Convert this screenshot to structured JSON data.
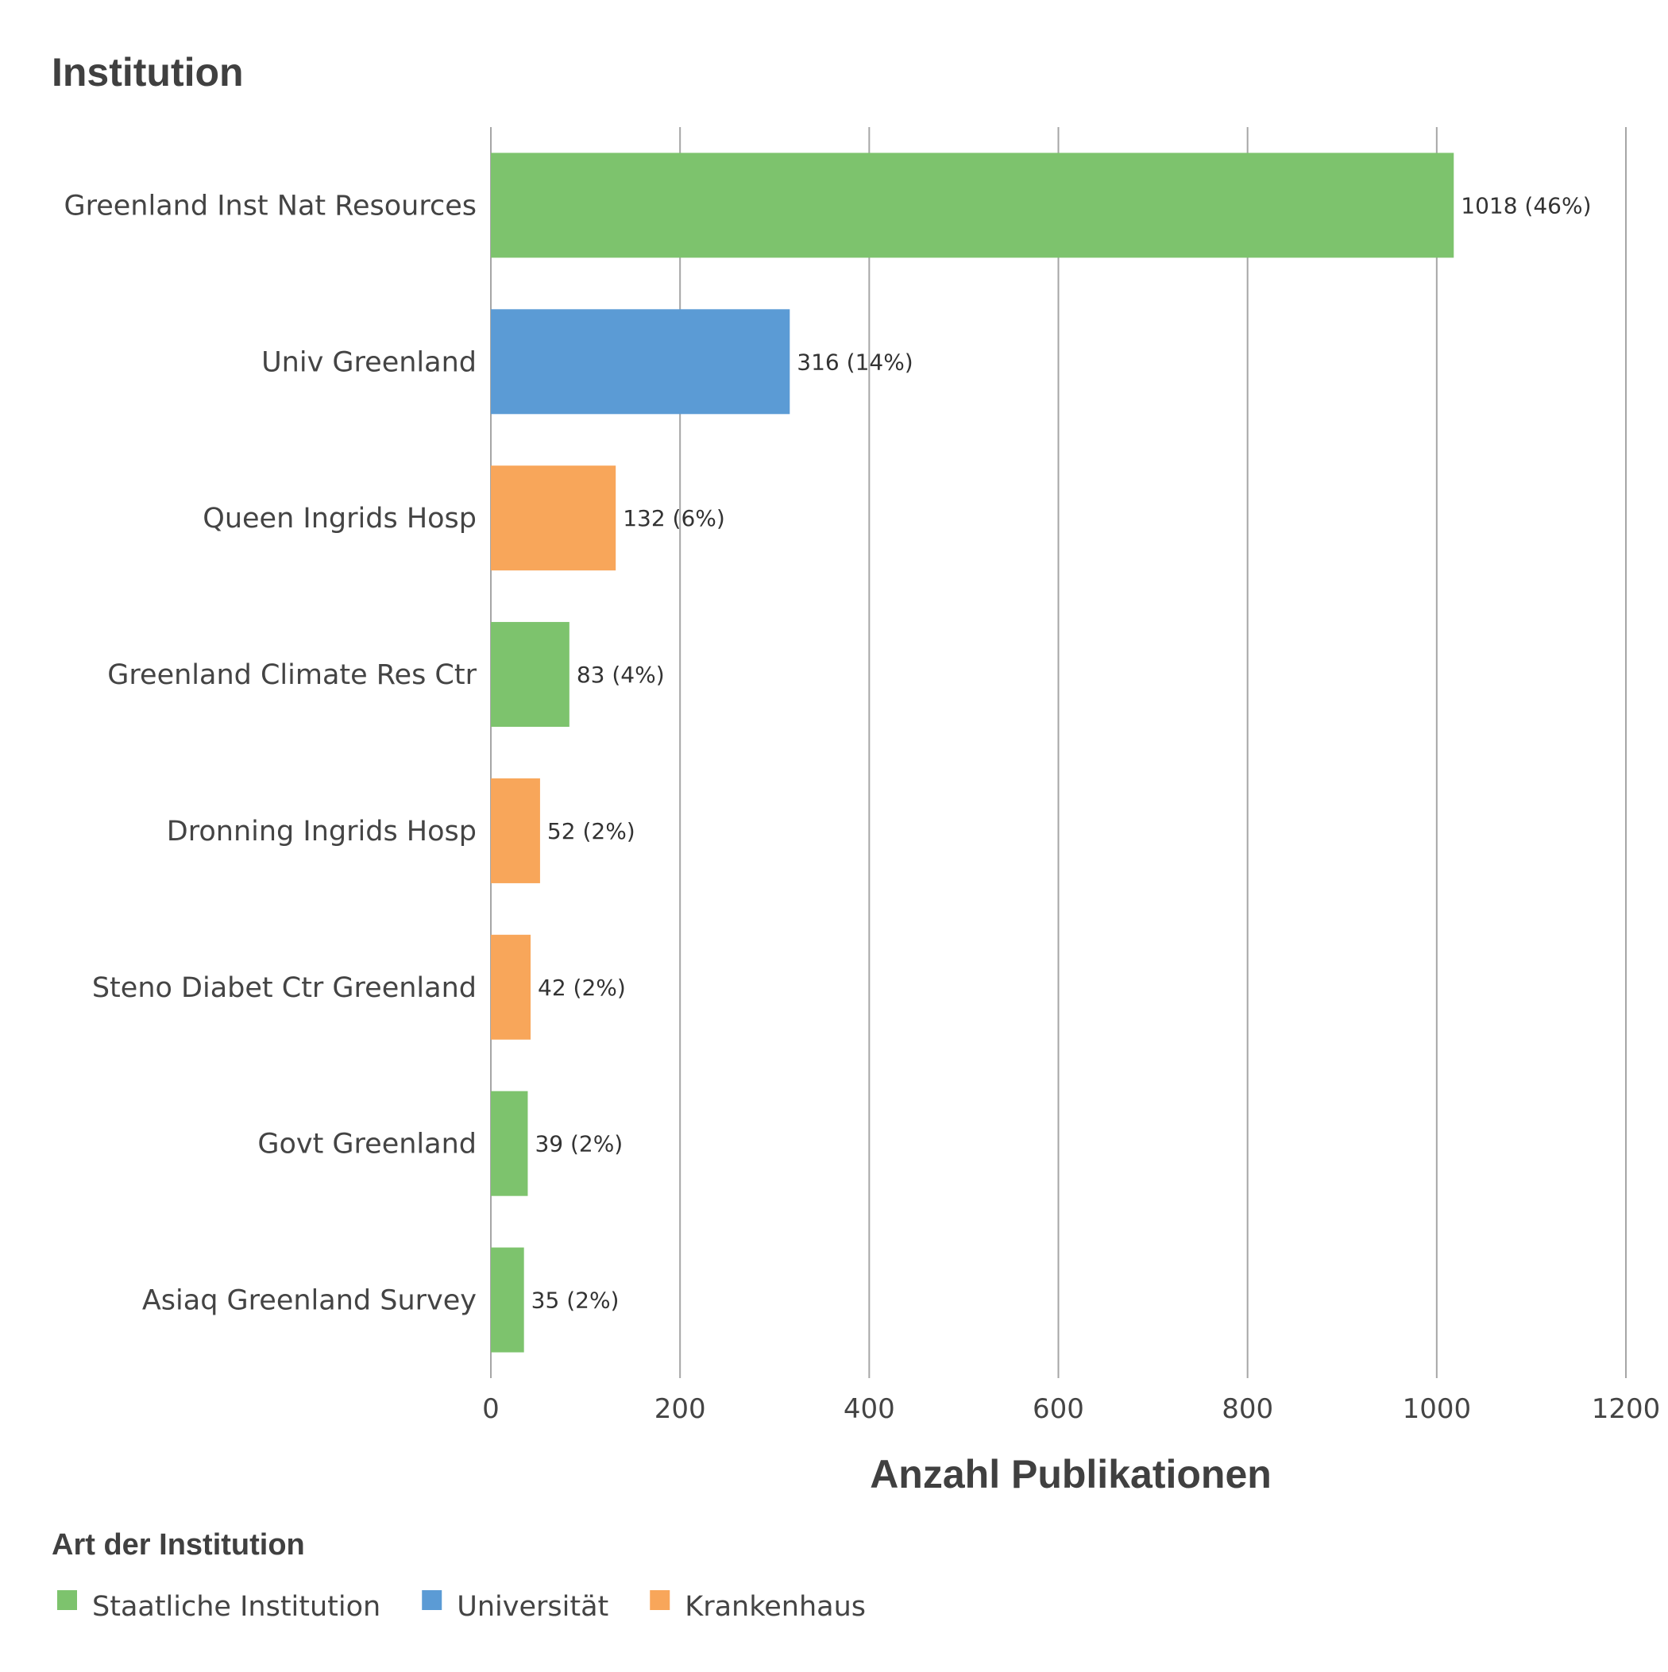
{
  "chart_data": {
    "type": "bar",
    "orientation": "horizontal",
    "title": "Institution",
    "xlabel": "Anzahl Publikationen",
    "ylabel": "",
    "xlim": [
      0,
      1200
    ],
    "x_ticks": [
      "0",
      "200",
      "400",
      "600",
      "800",
      "1000",
      "1200"
    ],
    "grid": "vertical",
    "categories": [
      "Greenland Inst Nat Resources",
      "Univ Greenland",
      "Queen Ingrids Hosp",
      "Greenland Climate Res Ctr",
      "Dronning Ingrids Hosp",
      "Steno Diabet Ctr Greenland",
      "Govt Greenland",
      "Asiaq Greenland Survey"
    ],
    "values": [
      1018,
      316,
      132,
      83,
      52,
      42,
      39,
      35
    ],
    "data_labels": [
      "1018 (46%)",
      "316 (14%)",
      "132 (6%)",
      "83 (4%)",
      "52 (2%)",
      "42 (2%)",
      "39 (2%)",
      "35 (2%)"
    ],
    "groups": [
      0,
      1,
      2,
      0,
      2,
      2,
      0,
      0
    ],
    "legend": {
      "title": "Art der Institution",
      "placement": "bottom-left",
      "items": [
        {
          "label": "Staatliche Institution",
          "color": "#7dc36d"
        },
        {
          "label": "Universität",
          "color": "#5b9bd5"
        },
        {
          "label": "Krankenhaus",
          "color": "#f8a65a"
        }
      ]
    },
    "colors": {
      "grid": "#a6a6a6",
      "text": "#404040"
    }
  }
}
